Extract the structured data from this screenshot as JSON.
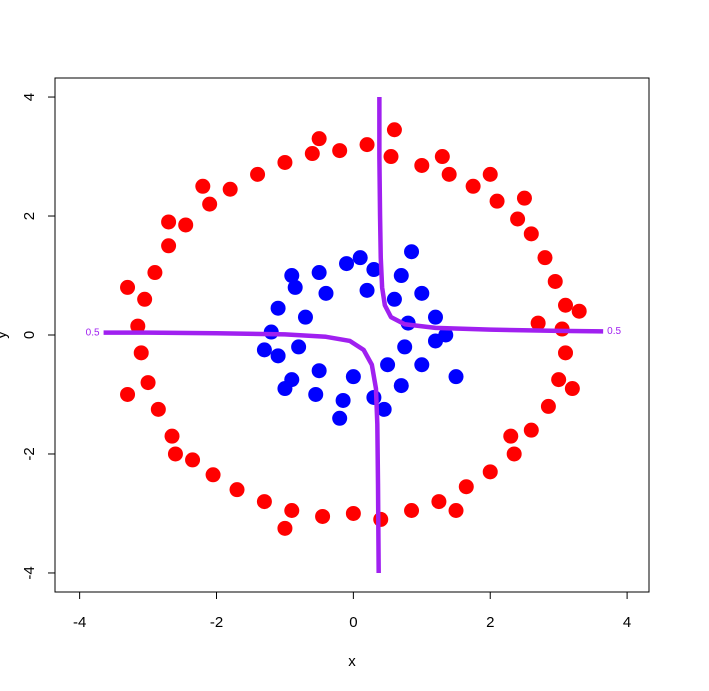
{
  "chart_data": {
    "type": "scatter",
    "x_label": "x",
    "y_label": "y",
    "xlim": [
      -4.36,
      4.32
    ],
    "ylim": [
      -4.32,
      4.32
    ],
    "xticks": [
      -4,
      -2,
      0,
      2,
      4
    ],
    "yticks": [
      -4,
      -2,
      0,
      2,
      4
    ],
    "series": [
      {
        "color": "#ff0000",
        "x": [
          3.05,
          3.1,
          2.95,
          2.8,
          2.6,
          2.4,
          2.1,
          1.75,
          1.4,
          1.0,
          0.55,
          0.2,
          -0.2,
          -0.6,
          -1.0,
          -1.4,
          -1.8,
          -2.1,
          -2.45,
          -2.7,
          -2.9,
          -3.05,
          -3.15,
          -3.1,
          -3.0,
          -2.85,
          -2.65,
          -2.35,
          -2.05,
          -1.7,
          -1.3,
          -0.9,
          -0.45,
          0,
          0.4,
          0.85,
          1.25,
          1.65,
          2.0,
          2.35,
          2.6,
          2.85,
          3.0,
          3.1,
          3.3,
          2.7,
          3.2,
          2.5,
          0.6,
          -0.5,
          -2.7,
          -3.3,
          -2.6,
          -1.0,
          1.5,
          2.3,
          1.3,
          -2.2,
          -3.3,
          2.0
        ],
        "y": [
          0.1,
          0.5,
          0.9,
          1.3,
          1.7,
          1.95,
          2.25,
          2.5,
          2.7,
          2.85,
          3.0,
          3.2,
          3.1,
          3.05,
          2.9,
          2.7,
          2.45,
          2.2,
          1.85,
          1.5,
          1.05,
          0.6,
          0.15,
          -0.3,
          -0.8,
          -1.25,
          -1.7,
          -2.1,
          -2.35,
          -2.6,
          -2.8,
          -2.95,
          -3.05,
          -3.0,
          -3.1,
          -2.95,
          -2.8,
          -2.55,
          -2.3,
          -2.0,
          -1.6,
          -1.2,
          -0.75,
          -0.3,
          0.4,
          0.2,
          -0.9,
          2.3,
          3.45,
          3.3,
          1.9,
          0.8,
          -2.0,
          -3.25,
          -2.95,
          -1.7,
          3.0,
          2.5,
          -1.0,
          2.7
        ]
      },
      {
        "color": "#0000ff",
        "x": [
          1.2,
          1.0,
          0.7,
          0.3,
          -0.1,
          -0.5,
          -0.85,
          -1.1,
          -1.2,
          -1.1,
          -0.9,
          -0.55,
          -0.15,
          0.3,
          0.7,
          1.0,
          1.2,
          0.8,
          0.6,
          0.2,
          -0.4,
          -0.7,
          -0.8,
          -0.5,
          0,
          0.5,
          0.75,
          1.5,
          0.85,
          -1.3,
          -0.2,
          1.35,
          -0.9,
          0.1,
          0.45,
          -1.0
        ],
        "y": [
          0.3,
          0.7,
          1.0,
          1.1,
          1.2,
          1.05,
          0.8,
          0.45,
          0.05,
          -0.35,
          -0.75,
          -1.0,
          -1.1,
          -1.05,
          -0.85,
          -0.5,
          -0.1,
          0.2,
          0.6,
          0.75,
          0.7,
          0.3,
          -0.2,
          -0.6,
          -0.7,
          -0.5,
          -0.2,
          -0.7,
          1.4,
          -0.25,
          -1.4,
          0.0,
          1.0,
          1.3,
          -1.25,
          -0.9
        ]
      }
    ],
    "contour": {
      "level": 0.5,
      "color": "#a020f0",
      "x": [
        0.38,
        0.38,
        0.39,
        0.4,
        0.42,
        0.46,
        0.55,
        0.75,
        1.2,
        2,
        3,
        3.65,
        null,
        -3.65,
        -3,
        -2,
        -1,
        -0.4,
        -0.05,
        0.15,
        0.27,
        0.33,
        0.35,
        0.36,
        0.37
      ],
      "y": [
        4,
        3,
        2,
        1.3,
        0.8,
        0.5,
        0.3,
        0.18,
        0.12,
        0.09,
        0.07,
        0.06,
        null,
        0.04,
        0.04,
        0.03,
        0.01,
        -0.03,
        -0.1,
        -0.25,
        -0.5,
        -0.9,
        -1.5,
        -2.5,
        -4
      ]
    }
  }
}
